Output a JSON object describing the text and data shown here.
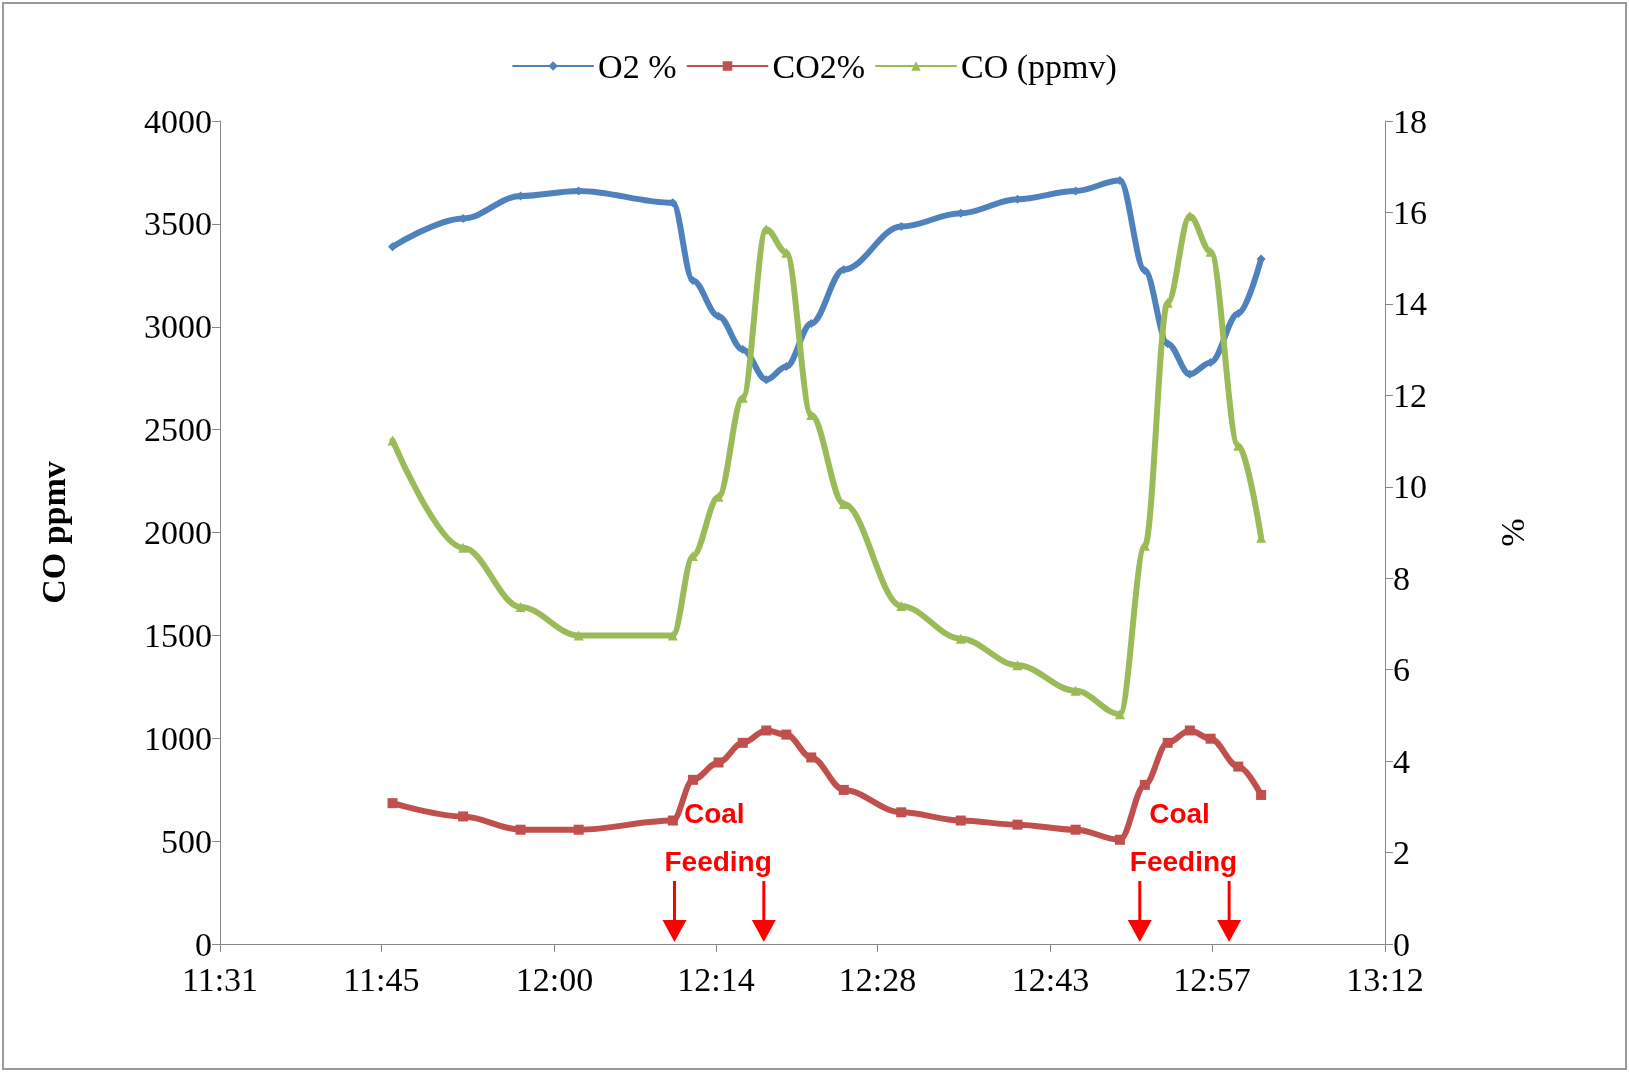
{
  "chart_data": {
    "type": "line",
    "ylabel": "CO ppmv",
    "y2label": "%",
    "x": [
      11.766,
      11.868,
      11.951,
      12.035,
      12.171,
      12.2,
      12.237,
      12.272,
      12.306,
      12.335,
      12.371,
      12.418,
      12.501,
      12.587,
      12.669,
      12.753,
      12.817,
      12.853,
      12.886,
      12.918,
      12.948,
      12.988,
      13.021
    ],
    "series": [
      {
        "name": "O2 %",
        "color": "#4f81bd",
        "axis": "y2",
        "marker": "diamond",
        "values": [
          15.25,
          15.87,
          16.36,
          16.47,
          16.21,
          14.51,
          13.73,
          13.0,
          12.34,
          12.63,
          13.57,
          14.75,
          15.69,
          15.98,
          16.29,
          16.47,
          16.7,
          14.73,
          13.13,
          12.46,
          12.72,
          13.79,
          14.98
        ]
      },
      {
        "name": "CO2%",
        "color": "#c0504d",
        "axis": "y2",
        "marker": "square",
        "values": [
          3.08,
          2.79,
          2.5,
          2.5,
          2.7,
          3.59,
          3.97,
          4.4,
          4.67,
          4.58,
          4.08,
          3.37,
          2.88,
          2.7,
          2.61,
          2.5,
          2.28,
          3.48,
          4.4,
          4.67,
          4.49,
          3.88,
          3.26
        ]
      },
      {
        "name": "CO (ppmv)",
        "color": "#9bbb59",
        "axis": "y",
        "marker": "triangle",
        "values": [
          2447,
          1926,
          1638,
          1499,
          1499,
          1886,
          2174,
          2655,
          3474,
          3360,
          2571,
          2139,
          1643,
          1484,
          1355,
          1231,
          1117,
          1935,
          3117,
          3538,
          3365,
          2422,
          1975
        ]
      }
    ],
    "xlim": [
      11.5167,
      13.2
    ],
    "xticks": [
      {
        "value": 11.5167,
        "label": "11:31"
      },
      {
        "value": 11.75,
        "label": "11:45"
      },
      {
        "value": 12,
        "label": "12:00"
      },
      {
        "value": 12.2333,
        "label": "12:14"
      },
      {
        "value": 12.4667,
        "label": "12:28"
      },
      {
        "value": 12.7167,
        "label": "12:43"
      },
      {
        "value": 12.95,
        "label": "12:57"
      },
      {
        "value": 13.2,
        "label": "13:12"
      }
    ],
    "ylim": [
      0,
      4000
    ],
    "yticks": [
      0,
      500,
      1000,
      1500,
      2000,
      2500,
      3000,
      3500,
      4000
    ],
    "y2lim": [
      0,
      18
    ],
    "y2ticks": [
      0,
      2,
      4,
      6,
      8,
      10,
      12,
      14,
      16,
      18
    ],
    "grid": false,
    "legend": "top",
    "line_style": "solid",
    "annotations": [
      "Coal Feeding",
      "Coal Feeding"
    ]
  }
}
